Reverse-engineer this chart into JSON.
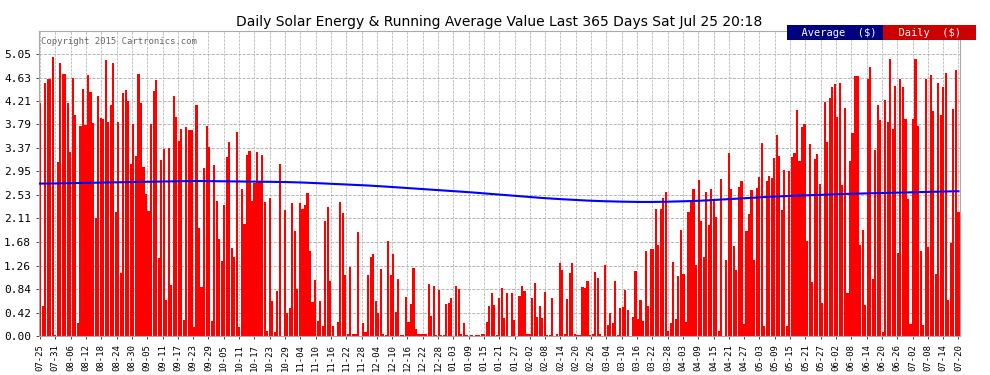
{
  "title": "Daily Solar Energy & Running Average Value Last 365 Days Sat Jul 25 20:18",
  "copyright": "Copyright 2015 Cartronics.com",
  "bar_color": "#FF0000",
  "avg_line_color": "#0000FF",
  "background_color": "#FFFFFF",
  "plot_bg_color": "#FFFFFF",
  "ylim": [
    0.0,
    5.47
  ],
  "yticks": [
    0.0,
    0.42,
    0.84,
    1.26,
    1.68,
    2.11,
    2.53,
    2.95,
    3.37,
    3.79,
    4.21,
    4.63,
    5.05
  ],
  "legend_avg_label": "Average  ($)",
  "legend_daily_label": "Daily  ($)",
  "legend_avg_color": "#000080",
  "legend_daily_color": "#CC0000",
  "x_tick_labels": [
    "07-25",
    "07-31",
    "08-06",
    "08-12",
    "08-18",
    "08-24",
    "08-30",
    "09-05",
    "09-11",
    "09-17",
    "09-23",
    "09-29",
    "10-05",
    "10-11",
    "10-17",
    "10-23",
    "10-29",
    "11-04",
    "11-10",
    "11-16",
    "11-22",
    "11-28",
    "12-04",
    "12-10",
    "12-16",
    "12-22",
    "12-28",
    "01-03",
    "01-09",
    "01-15",
    "01-21",
    "01-27",
    "02-02",
    "02-08",
    "02-14",
    "02-20",
    "02-26",
    "03-04",
    "03-10",
    "03-16",
    "03-22",
    "03-28",
    "04-03",
    "04-09",
    "04-15",
    "04-21",
    "04-27",
    "05-03",
    "05-09",
    "05-15",
    "05-21",
    "05-27",
    "06-02",
    "06-08",
    "06-14",
    "06-20",
    "06-26",
    "07-02",
    "07-08",
    "07-14",
    "07-20"
  ],
  "num_bars": 365,
  "avg_points": [
    [
      0,
      2.73
    ],
    [
      60,
      2.78
    ],
    [
      100,
      2.76
    ],
    [
      130,
      2.7
    ],
    [
      170,
      2.58
    ],
    [
      200,
      2.47
    ],
    [
      220,
      2.42
    ],
    [
      240,
      2.4
    ],
    [
      260,
      2.42
    ],
    [
      290,
      2.5
    ],
    [
      320,
      2.55
    ],
    [
      350,
      2.58
    ],
    [
      364,
      2.6
    ]
  ]
}
